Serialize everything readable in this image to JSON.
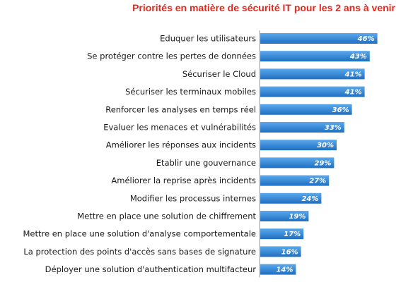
{
  "chart_data": {
    "type": "bar",
    "orientation": "horizontal",
    "title": "Priorités en matière de sécurité IT pour les 2 ans à venir",
    "categories": [
      "Eduquer les utilisateurs",
      "Se protéger contre les pertes de données",
      "Sécuriser le Cloud",
      "Sécuriser les terminaux mobiles",
      "Renforcer les analyses en temps réel",
      "Evaluer les menaces et vulnérabilités",
      "Améliorer les réponses aux incidents",
      "Etablir une gouvernance",
      "Améliorer la reprise après incidents",
      "Modifier les processus internes",
      "Mettre en place une solution de chiffrement",
      "Mettre en place une solution d'analyse comportementale",
      "La protection des points d'accès sans bases de signature",
      "Déployer une solution d'authentication multifacteur"
    ],
    "values": [
      46,
      43,
      41,
      41,
      36,
      33,
      30,
      29,
      27,
      24,
      19,
      17,
      16,
      14
    ],
    "value_labels": [
      "46%",
      "43%",
      "41%",
      "41%",
      "36%",
      "33%",
      "30%",
      "29%",
      "27%",
      "24%",
      "19%",
      "17%",
      "16%",
      "14%"
    ],
    "xlim": [
      0,
      50
    ],
    "grid": false,
    "legend": "none",
    "colors": {
      "bar_light": "#5aa8ec",
      "bar_dark": "#1f6fc2",
      "axis": "#9a9a9a",
      "title": "#e8271b",
      "label_text": "#1a1a1a"
    }
  }
}
